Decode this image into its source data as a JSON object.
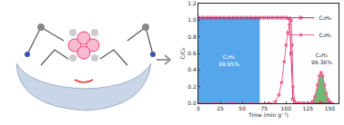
{
  "chart_data": {
    "type": "line",
    "xlabel": "Time (min g⁻¹)",
    "ylabel": "C/C₀",
    "xlim": [
      0,
      160
    ],
    "xticks": [
      0,
      25,
      50,
      75,
      100,
      125,
      150
    ],
    "ylim": [
      0,
      1.2
    ],
    "yticks": [
      {
        "value": 0,
        "label": "0.0"
      },
      {
        "value": 0.2,
        "label": "0.2"
      },
      {
        "value": 0.4,
        "label": "0.4"
      },
      {
        "value": 0.6,
        "label": "0.6"
      },
      {
        "value": 0.8,
        "label": "0.8"
      },
      {
        "value": 1,
        "label": "1.0"
      },
      {
        "value": 1.2,
        "label": "1.2"
      }
    ],
    "legend": "top right",
    "grid": false,
    "series": [
      {
        "name": "C₂H₄",
        "color": "#d81b60",
        "marker": "square-open",
        "x": [
          0,
          5,
          10,
          15,
          20,
          25,
          30,
          35,
          40,
          45,
          50,
          55,
          60,
          65,
          70,
          75,
          80,
          85,
          90,
          95,
          100,
          104,
          106,
          108,
          110,
          115,
          120,
          130,
          140,
          150
        ],
        "values": [
          1.03,
          1.03,
          1.03,
          1.03,
          1.03,
          1.03,
          1.03,
          1.03,
          1.03,
          1.03,
          1.03,
          1.03,
          1.03,
          1.03,
          1.03,
          1.03,
          1.03,
          1.03,
          1.03,
          1.03,
          1.03,
          1.02,
          0.6,
          0.05,
          0,
          0,
          0,
          0,
          0,
          0
        ]
      },
      {
        "name": "C₂H₂",
        "color": "#f06292",
        "marker": "circle",
        "x": [
          0,
          20,
          40,
          60,
          80,
          88,
          92,
          95,
          98,
          100,
          102,
          104,
          106,
          107,
          108,
          110,
          115,
          120,
          125,
          130,
          133,
          136,
          138,
          140,
          142,
          144,
          146,
          148,
          150,
          153
        ],
        "values": [
          0,
          0,
          0,
          0,
          0,
          0.02,
          0.1,
          0.25,
          0.5,
          0.7,
          0.85,
          0.95,
          1.0,
          0.7,
          0.2,
          0.02,
          0,
          0,
          0,
          0.02,
          0.08,
          0.22,
          0.33,
          0.37,
          0.33,
          0.22,
          0.12,
          0.05,
          0.02,
          0
        ]
      }
    ],
    "regions": [
      {
        "label": "C₂H₄",
        "sublabel": "99.95%",
        "x": [
          0,
          70
        ],
        "y": [
          0,
          1.03
        ],
        "color": "#1e88e5"
      },
      {
        "label": "C₂H₂",
        "sublabel": "99.36%",
        "x": [
          128,
          153
        ],
        "series": "C₂H₂",
        "color": "#43a047"
      }
    ]
  }
}
